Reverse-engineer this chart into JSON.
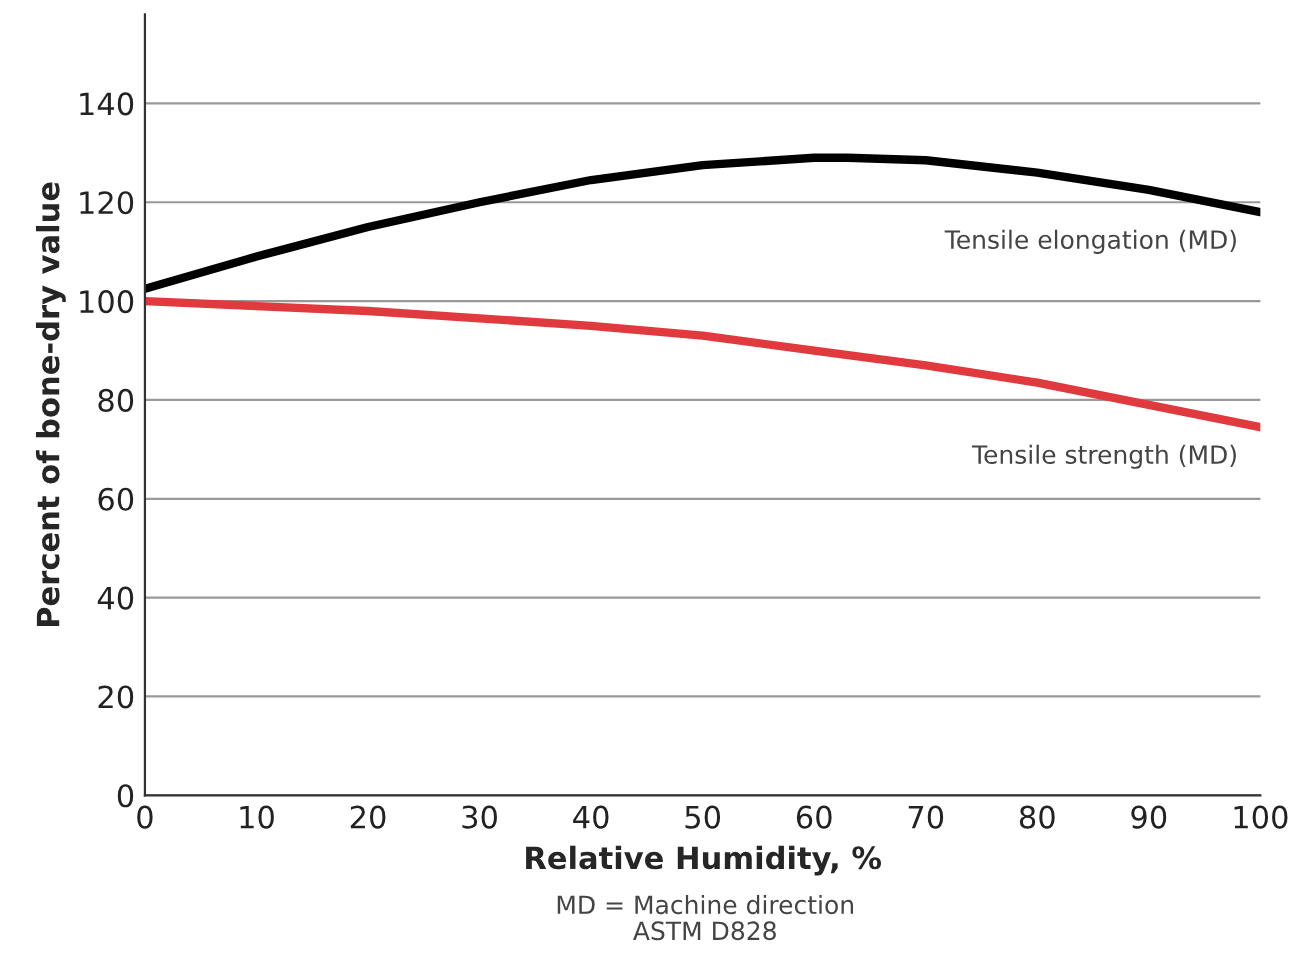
{
  "chart_data": {
    "type": "line",
    "xlabel": "Relative Humidity, %",
    "ylabel": "Percent of bone-dry value",
    "annotations": [
      "MD = Machine direction",
      "ASTM D828"
    ],
    "xlim": [
      0,
      100
    ],
    "xticks": [
      0,
      10,
      20,
      30,
      40,
      50,
      60,
      70,
      80,
      90,
      100
    ],
    "ylim": [
      0,
      158
    ],
    "yticks": [
      0,
      20,
      40,
      60,
      80,
      100,
      120,
      140
    ],
    "grid": "y",
    "legend": false,
    "series": [
      {
        "name": "Tensile elongation (MD)",
        "color": "#000000",
        "x": [
          0,
          10,
          20,
          30,
          40,
          50,
          60,
          63,
          70,
          80,
          90,
          100
        ],
        "values": [
          102.5,
          109,
          115,
          120,
          124.5,
          127.5,
          129,
          129,
          128.5,
          126,
          122.5,
          118
        ]
      },
      {
        "name": "Tensile strength (MD)",
        "color": "#e03a3e",
        "x": [
          0,
          10,
          20,
          30,
          40,
          50,
          60,
          70,
          80,
          90,
          100
        ],
        "values": [
          100,
          99,
          98,
          96.5,
          95,
          93,
          90,
          87,
          83.5,
          79,
          74.5
        ]
      }
    ]
  }
}
